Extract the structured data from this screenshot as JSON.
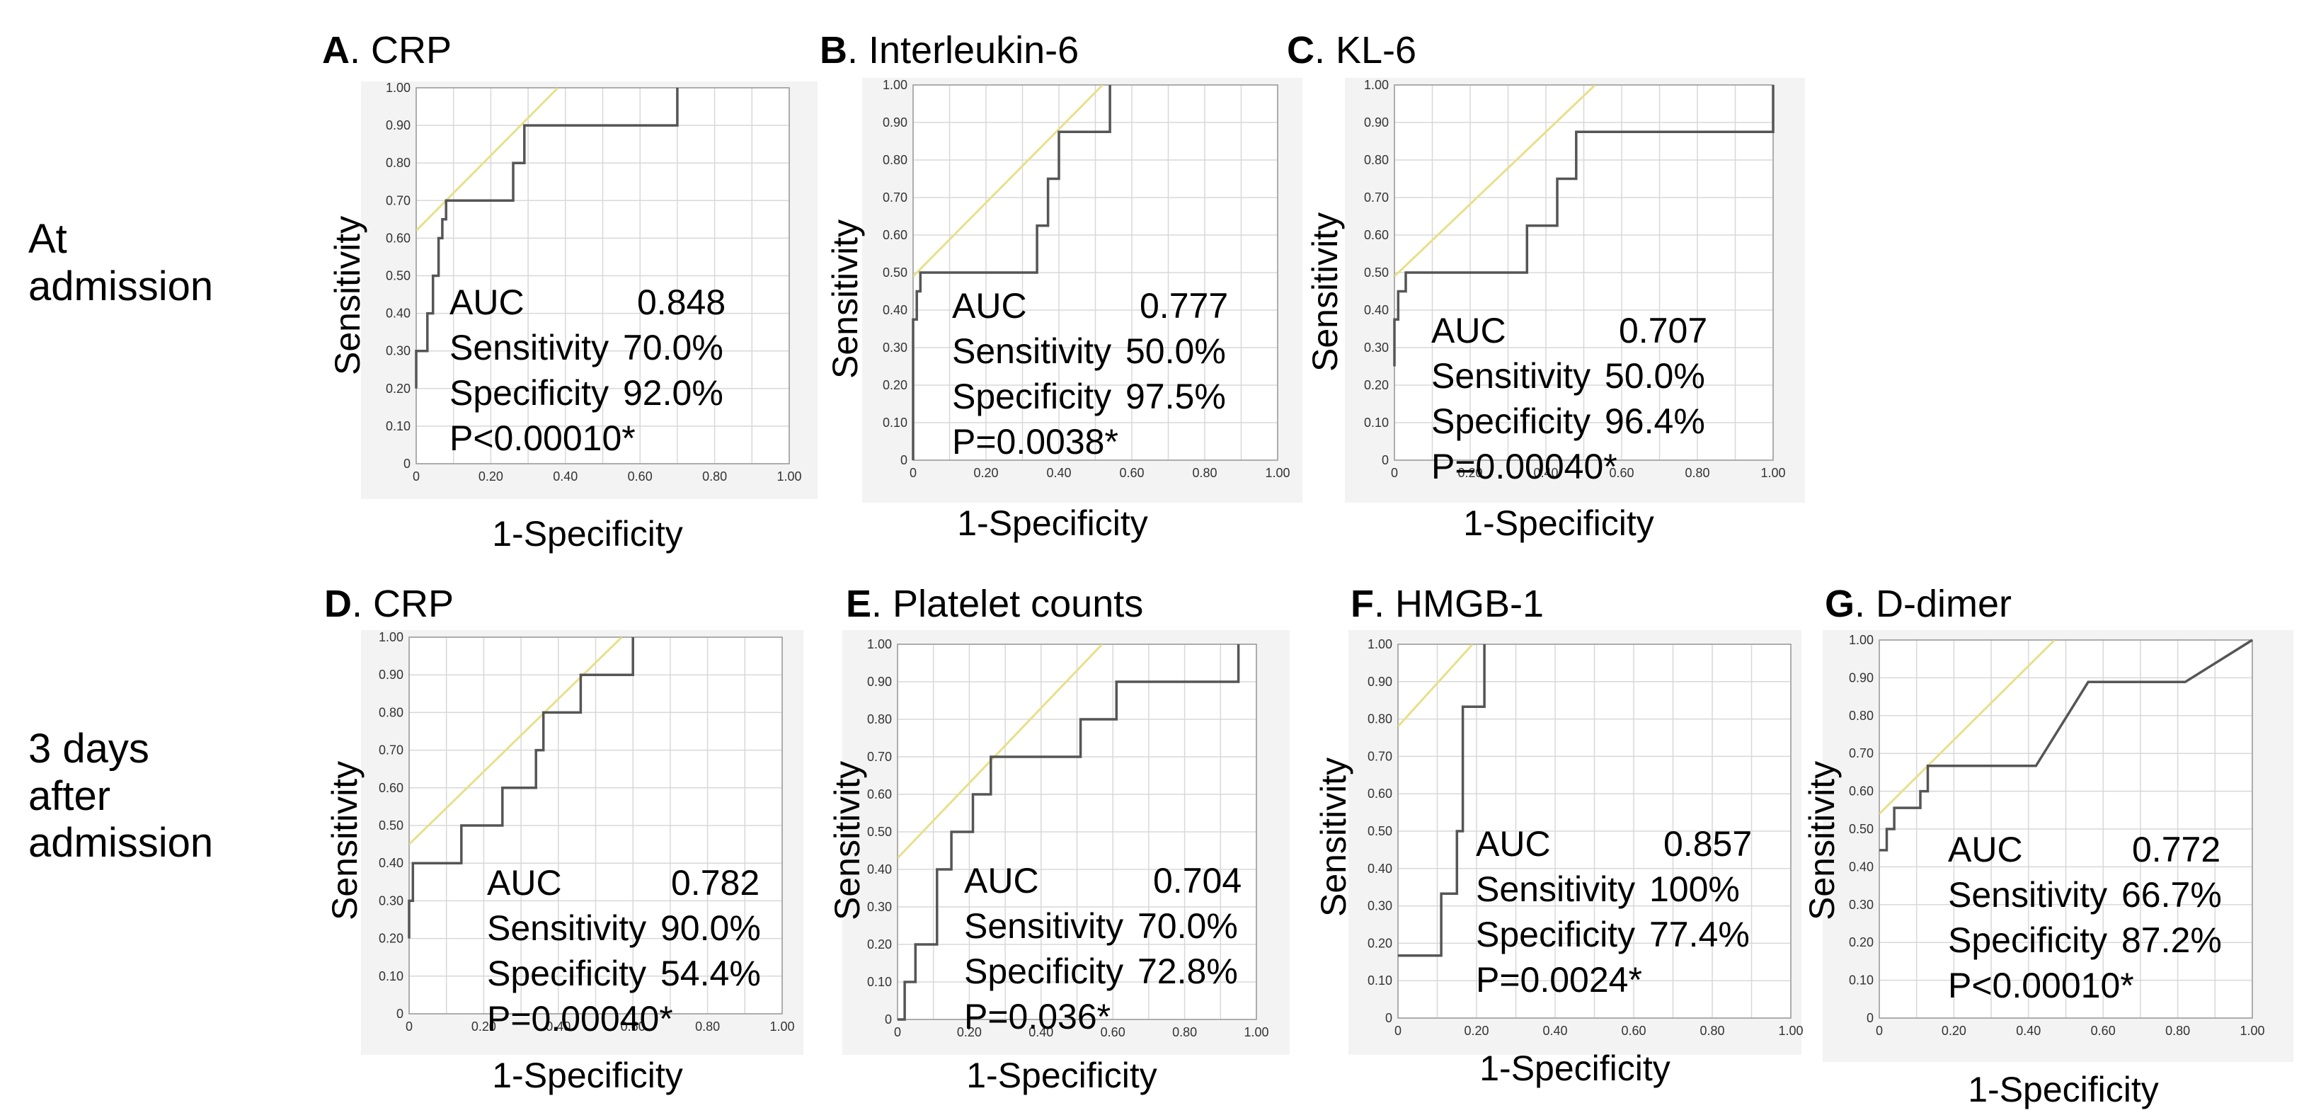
{
  "rows": [
    {
      "label_line1": "At",
      "label_line2": "admission"
    },
    {
      "label_line1": "3 days",
      "label_line2": "after",
      "label_line3": "admission"
    }
  ],
  "chart_data": [
    {
      "id": "A",
      "letter": "A",
      "name": ". CRP",
      "type": "line",
      "xlabel": "1-Specificity",
      "ylabel": "Sensitivity",
      "xlim": [
        0,
        1
      ],
      "ylim": [
        0,
        1
      ],
      "x_ticks": [
        "0",
        "0.20",
        "0.40",
        "0.60",
        "0.80",
        "1.00"
      ],
      "y_ticks": [
        "0",
        "0.10",
        "0.20",
        "0.30",
        "0.40",
        "0.50",
        "0.60",
        "0.70",
        "0.80",
        "0.90",
        "1.00"
      ],
      "roc_x": [
        0,
        0,
        0.03,
        0.03,
        0.045,
        0.045,
        0.06,
        0.06,
        0.07,
        0.07,
        0.08,
        0.08,
        0.26,
        0.26,
        0.29,
        0.29,
        0.7,
        0.7
      ],
      "roc_y": [
        0.2,
        0.3,
        0.3,
        0.4,
        0.4,
        0.5,
        0.5,
        0.6,
        0.6,
        0.65,
        0.65,
        0.7,
        0.7,
        0.8,
        0.8,
        0.9,
        0.9,
        1.0
      ],
      "cutoff_line": [
        [
          0,
          0.62
        ],
        [
          0.38,
          1.0
        ]
      ],
      "stats": {
        "auc_label": "AUC",
        "auc": "0.848",
        "sens_label": "Sensitivity",
        "sens": "70.0%",
        "spec_label": "Specificity",
        "spec": "92.0%",
        "p": "P<0.00010*"
      }
    },
    {
      "id": "B",
      "letter": "B",
      "name": ". Interleukin-6",
      "type": "line",
      "xlabel": "1-Specificity",
      "ylabel": "Sensitivity",
      "xlim": [
        0,
        1
      ],
      "ylim": [
        0,
        1
      ],
      "x_ticks": [
        "0",
        "0.20",
        "0.40",
        "0.60",
        "0.80",
        "1.00"
      ],
      "y_ticks": [
        "0",
        "0.10",
        "0.20",
        "0.30",
        "0.40",
        "0.50",
        "0.60",
        "0.70",
        "0.80",
        "0.90",
        "1.00"
      ],
      "roc_x": [
        0,
        0,
        0.01,
        0.01,
        0.02,
        0.02,
        0.34,
        0.34,
        0.37,
        0.37,
        0.4,
        0.4,
        0.43,
        0.43,
        0.54,
        0.54
      ],
      "roc_y": [
        0,
        0.375,
        0.375,
        0.45,
        0.45,
        0.5,
        0.5,
        0.625,
        0.625,
        0.75,
        0.75,
        0.875,
        0.875,
        0.875,
        0.875,
        1.0
      ],
      "cutoff_line": [
        [
          0,
          0.49
        ],
        [
          0.52,
          1.0
        ]
      ],
      "stats": {
        "auc_label": "AUC",
        "auc": "0.777",
        "sens_label": "Sensitivity",
        "sens": "50.0%",
        "spec_label": "Specificity",
        "spec": "97.5%",
        "p": "P=0.0038*"
      }
    },
    {
      "id": "C",
      "letter": "C",
      "name": ". KL-6",
      "type": "line",
      "xlabel": "1-Specificity",
      "ylabel": "Sensitivity",
      "xlim": [
        0,
        1
      ],
      "ylim": [
        0,
        1
      ],
      "x_ticks": [
        "0",
        "0.20",
        "0.40",
        "0.60",
        "0.80",
        "1.00"
      ],
      "y_ticks": [
        "0",
        "0.10",
        "0.20",
        "0.30",
        "0.40",
        "0.50",
        "0.60",
        "0.70",
        "0.80",
        "0.90",
        "1.00"
      ],
      "roc_x": [
        0,
        0,
        0.01,
        0.01,
        0.03,
        0.03,
        0.35,
        0.35,
        0.43,
        0.43,
        0.48,
        0.48,
        1.0,
        1.0
      ],
      "roc_y": [
        0.25,
        0.375,
        0.375,
        0.45,
        0.45,
        0.5,
        0.5,
        0.625,
        0.625,
        0.75,
        0.75,
        0.875,
        0.875,
        1.0
      ],
      "cutoff_line": [
        [
          0,
          0.49
        ],
        [
          0.53,
          1.0
        ]
      ],
      "stats": {
        "auc_label": "AUC",
        "auc": "0.707",
        "sens_label": "Sensitivity",
        "sens": "50.0%",
        "spec_label": "Specificity",
        "spec": "96.4%",
        "p": "P=0.00040*"
      }
    },
    {
      "id": "D",
      "letter": "D",
      "name": ". CRP",
      "type": "line",
      "xlabel": "1-Specificity",
      "ylabel": "Sensitivity",
      "xlim": [
        0,
        1
      ],
      "ylim": [
        0,
        1
      ],
      "x_ticks": [
        "0",
        "0.20",
        "0.40",
        "0.60",
        "0.80",
        "1.00"
      ],
      "y_ticks": [
        "0",
        "0.10",
        "0.20",
        "0.30",
        "0.40",
        "0.50",
        "0.60",
        "0.70",
        "0.80",
        "0.90",
        "1.00"
      ],
      "roc_x": [
        0,
        0,
        0.01,
        0.01,
        0.02,
        0.02,
        0.14,
        0.14,
        0.25,
        0.25,
        0.34,
        0.34,
        0.36,
        0.36,
        0.46,
        0.46,
        0.6,
        0.6
      ],
      "roc_y": [
        0.2,
        0.3,
        0.3,
        0.4,
        0.4,
        0.4,
        0.4,
        0.5,
        0.5,
        0.6,
        0.6,
        0.7,
        0.7,
        0.8,
        0.8,
        0.9,
        0.9,
        1.0
      ],
      "cutoff_line": [
        [
          0,
          0.45
        ],
        [
          0.57,
          1.0
        ]
      ],
      "stats": {
        "auc_label": "AUC",
        "auc": "0.782",
        "sens_label": "Sensitivity",
        "sens": "90.0%",
        "spec_label": "Specificity",
        "spec": "54.4%",
        "p": "P=0.00040*"
      }
    },
    {
      "id": "E",
      "letter": "E",
      "name": ". Platelet counts",
      "type": "line",
      "xlabel": "1-Specificity",
      "ylabel": "Sensitivity",
      "xlim": [
        0,
        1
      ],
      "ylim": [
        0,
        1
      ],
      "x_ticks": [
        "0",
        "0.20",
        "0.40",
        "0.60",
        "0.80",
        "1.00"
      ],
      "y_ticks": [
        "0",
        "0.10",
        "0.20",
        "0.30",
        "0.40",
        "0.50",
        "0.60",
        "0.70",
        "0.80",
        "0.90",
        "1.00"
      ],
      "roc_x": [
        0,
        0.02,
        0.02,
        0.05,
        0.05,
        0.11,
        0.11,
        0.15,
        0.15,
        0.21,
        0.21,
        0.26,
        0.26,
        0.51,
        0.51,
        0.61,
        0.61,
        0.95,
        0.95
      ],
      "roc_y": [
        0,
        0,
        0.1,
        0.1,
        0.2,
        0.2,
        0.4,
        0.4,
        0.5,
        0.5,
        0.6,
        0.6,
        0.7,
        0.7,
        0.8,
        0.8,
        0.9,
        0.9,
        1.0
      ],
      "cutoff_line": [
        [
          0,
          0.43
        ],
        [
          0.57,
          1.0
        ]
      ],
      "stats": {
        "auc_label": "AUC",
        "auc": "0.704",
        "sens_label": "Sensitivity",
        "sens": "70.0%",
        "spec_label": "Specificity",
        "spec": "72.8%",
        "p": "P=0.036*"
      }
    },
    {
      "id": "F",
      "letter": "F",
      "name": ". HMGB-1",
      "type": "line",
      "xlabel": "1-Specificity",
      "ylabel": "Sensitivity",
      "xlim": [
        0,
        1
      ],
      "ylim": [
        0,
        1
      ],
      "x_ticks": [
        "0",
        "0.20",
        "0.40",
        "0.60",
        "0.80",
        "1.00"
      ],
      "y_ticks": [
        "0",
        "0.10",
        "0.20",
        "0.30",
        "0.40",
        "0.50",
        "0.60",
        "0.70",
        "0.80",
        "0.90",
        "1.00"
      ],
      "roc_x": [
        0,
        0.11,
        0.11,
        0.15,
        0.15,
        0.165,
        0.165,
        0.18,
        0.18,
        0.22,
        0.22
      ],
      "roc_y": [
        0.167,
        0.167,
        0.333,
        0.333,
        0.5,
        0.5,
        0.833,
        0.833,
        0.833,
        0.833,
        1.0
      ],
      "cutoff_line": [
        [
          0,
          0.78
        ],
        [
          0.19,
          1.0
        ]
      ],
      "stats": {
        "auc_label": "AUC",
        "auc": "0.857",
        "sens_label": "Sensitivity",
        "sens": "100%",
        "spec_label": "Specificity",
        "spec": "77.4%",
        "p": "P=0.0024*"
      }
    },
    {
      "id": "G",
      "letter": "G",
      "name": ". D-dimer",
      "type": "line",
      "xlabel": "1-Specificity",
      "ylabel": "Sensitivity",
      "xlim": [
        0,
        1
      ],
      "ylim": [
        0,
        1
      ],
      "x_ticks": [
        "0",
        "0.20",
        "0.40",
        "0.60",
        "0.80",
        "1.00"
      ],
      "y_ticks": [
        "0",
        "0.10",
        "0.20",
        "0.30",
        "0.40",
        "0.50",
        "0.60",
        "0.70",
        "0.80",
        "0.90",
        "1.00"
      ],
      "roc_x": [
        0,
        0.02,
        0.02,
        0.04,
        0.04,
        0.11,
        0.11,
        0.13,
        0.13,
        0.42,
        0.56,
        0.82,
        1.0
      ],
      "roc_y": [
        0.444,
        0.444,
        0.5,
        0.5,
        0.556,
        0.556,
        0.6,
        0.6,
        0.667,
        0.667,
        0.889,
        0.889,
        1.0
      ],
      "cutoff_line": [
        [
          0,
          0.54
        ],
        [
          0.47,
          1.0
        ]
      ],
      "stats": {
        "auc_label": "AUC",
        "auc": "0.772",
        "sens_label": "Sensitivity",
        "sens": "66.7%",
        "spec_label": "Specificity",
        "spec": "87.2%",
        "p": "P<0.00010*"
      }
    }
  ],
  "colors": {
    "roc_line": "#555555",
    "cutoff_line": "#e8e08a",
    "grid": "#d8d8d8",
    "frame_bg": "#f3f3f3",
    "plot_bg": "#ffffff"
  }
}
